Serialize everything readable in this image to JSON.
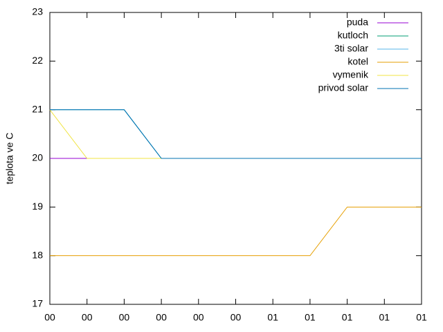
{
  "chart_data": {
    "type": "line",
    "y_label": "teplota ve C",
    "categories": [
      "00",
      "00",
      "00",
      "00",
      "00",
      "00",
      "01",
      "01",
      "01",
      "01",
      "01"
    ],
    "series": [
      {
        "name": "puda",
        "color": "#9400d3",
        "values": [
          20,
          20,
          null,
          null,
          null,
          null,
          null,
          null,
          null,
          null,
          null
        ]
      },
      {
        "name": "kutloch",
        "color": "#009e73",
        "values": [
          21,
          21,
          21,
          20,
          20,
          20,
          20,
          20,
          20,
          20,
          20
        ]
      },
      {
        "name": "3ti solar",
        "color": "#56b4e9",
        "values": [
          21,
          21,
          21,
          20,
          20,
          20,
          20,
          20,
          20,
          20,
          20
        ]
      },
      {
        "name": "kotel",
        "color": "#e69f00",
        "values": [
          18,
          18,
          18,
          18,
          18,
          18,
          18,
          18,
          19,
          19,
          19
        ]
      },
      {
        "name": "vymenik",
        "color": "#f0e442",
        "values": [
          21,
          20,
          20,
          20,
          20,
          20,
          20,
          20,
          20,
          20,
          20
        ]
      },
      {
        "name": "privod solar",
        "color": "#0072b2",
        "values": [
          21,
          21,
          21,
          20,
          20,
          20,
          20,
          20,
          20,
          20,
          20
        ]
      }
    ],
    "ylim": [
      17,
      23
    ],
    "yticks": [
      17,
      18,
      19,
      20,
      21,
      22,
      23
    ],
    "legend": "top-right"
  }
}
